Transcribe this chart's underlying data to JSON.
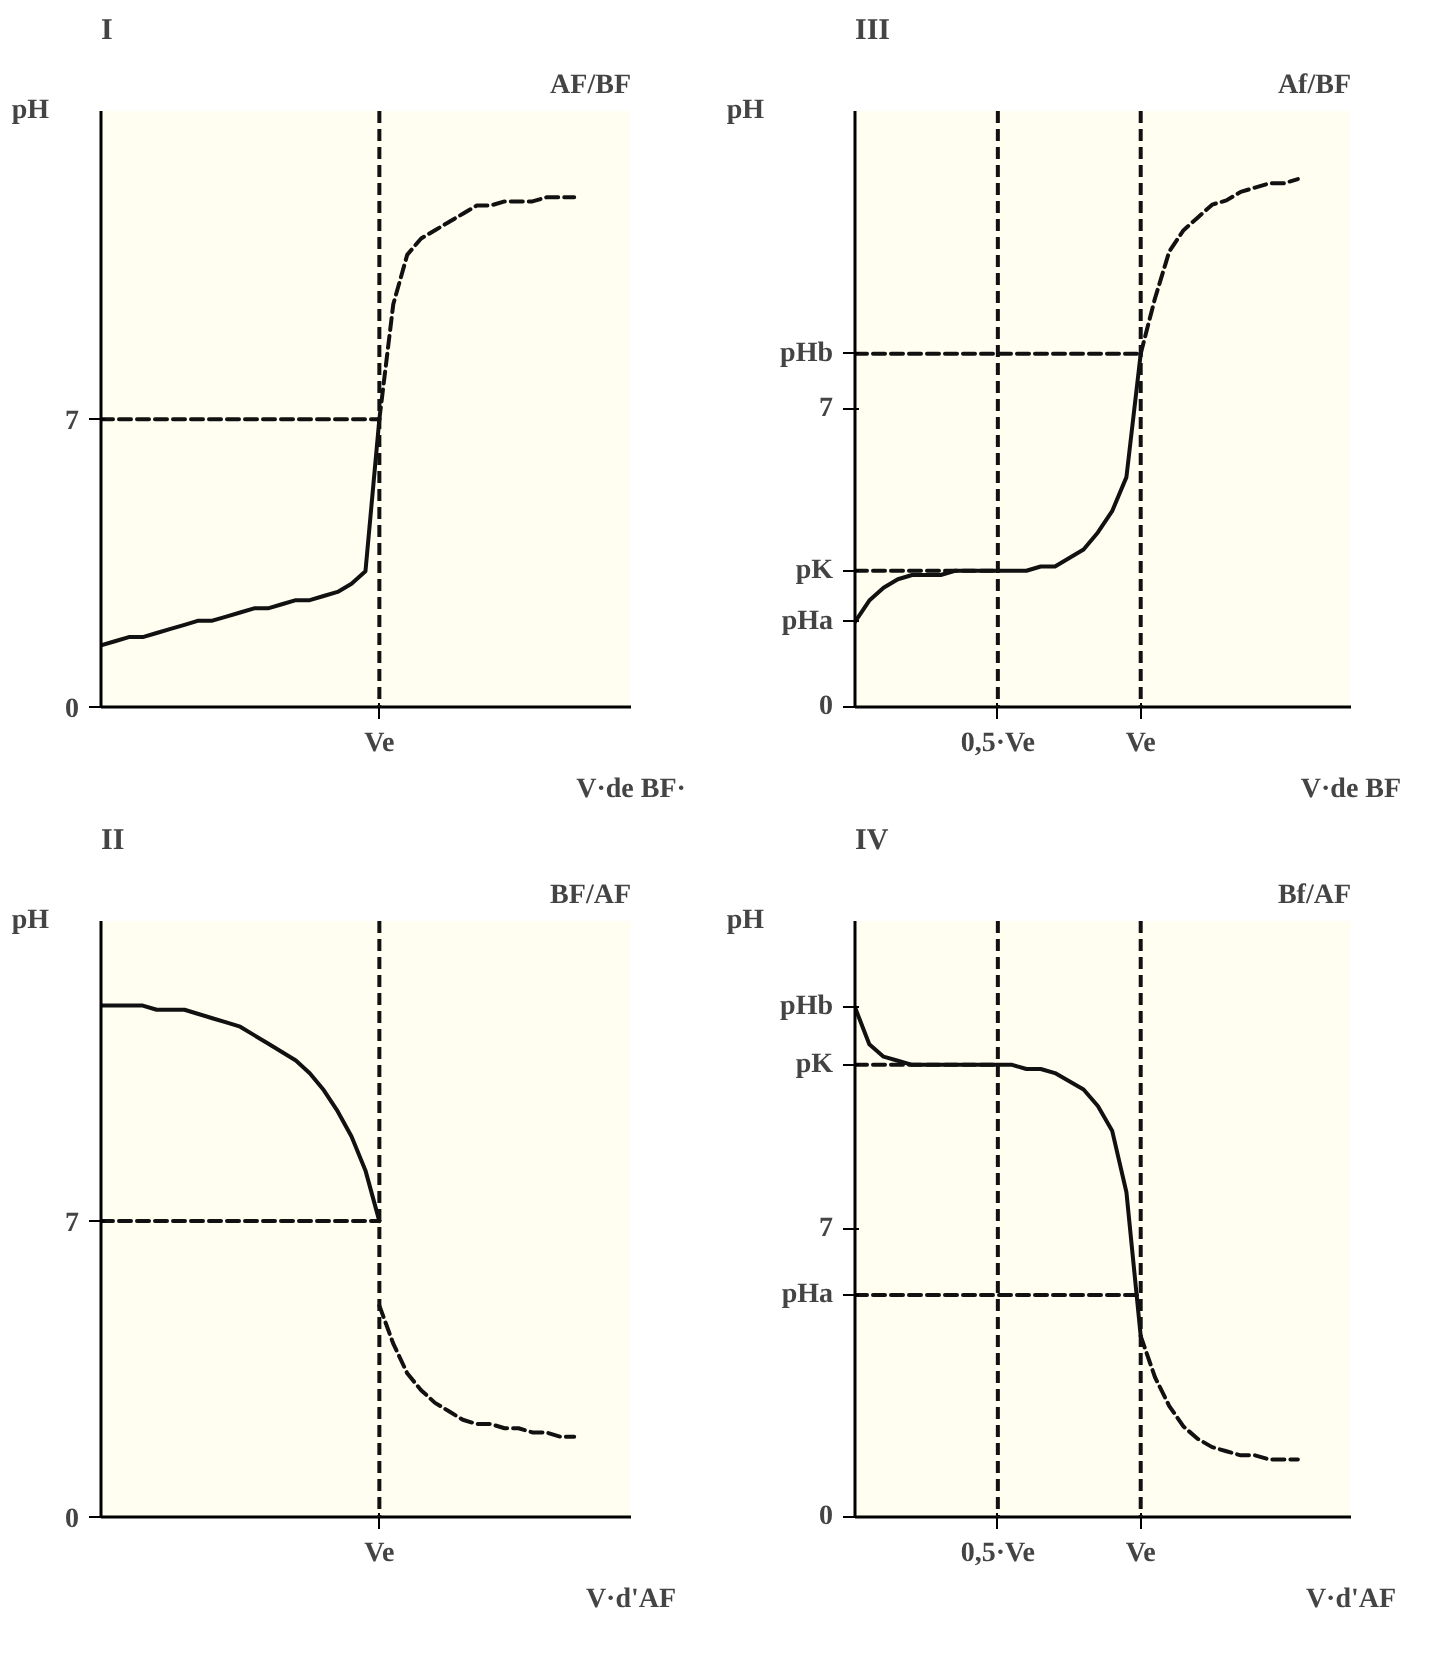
{
  "chart_data": [
    {
      "type": "line",
      "title": "I",
      "subtitle": "AF/BF",
      "xlabel": "V·de BF·",
      "ylabel": "pH",
      "ylim": [
        0,
        14.5
      ],
      "yticks": [
        0,
        7
      ],
      "grid": false,
      "categories": [
        null,
        null,
        null,
        null,
        null,
        null,
        null,
        null,
        null,
        null,
        null,
        null,
        null,
        null,
        null,
        null,
        null,
        null,
        null,
        null,
        "Ve",
        null,
        null,
        null,
        null,
        null,
        null,
        null,
        null,
        null,
        null,
        null,
        null,
        null,
        null
      ],
      "ref_lines": [
        {
          "axis": "x",
          "value": "Ve",
          "line_style": "dashed",
          "color": "#111111"
        }
      ],
      "series": [
        {
          "color": "#111111",
          "line_style": "solid",
          "values": [
            1.5,
            1.6,
            1.7,
            1.7,
            1.8,
            1.9,
            2.0,
            2.1,
            2.1,
            2.2,
            2.3,
            2.4,
            2.4,
            2.5,
            2.6,
            2.6,
            2.7,
            2.8,
            3.0,
            3.3,
            7,
            null,
            null,
            null,
            null,
            null,
            null,
            null,
            null,
            null,
            null,
            null,
            null,
            null,
            null
          ]
        },
        {
          "color": "#111111",
          "line_style": "dashed",
          "values": [
            null,
            null,
            null,
            null,
            null,
            null,
            null,
            null,
            null,
            null,
            null,
            null,
            null,
            null,
            null,
            null,
            null,
            null,
            null,
            null,
            7,
            9.8,
            11.0,
            11.4,
            11.6,
            11.8,
            12.0,
            12.2,
            12.2,
            12.3,
            12.3,
            12.3,
            12.4,
            12.4,
            12.4
          ]
        },
        {
          "color": "#111111",
          "line_style": "dashed",
          "values": [
            7,
            7,
            7,
            7,
            7,
            7,
            7,
            7,
            7,
            7,
            7,
            7,
            7,
            7,
            7,
            7,
            7,
            7,
            7,
            7,
            7,
            null,
            null,
            null,
            null,
            null,
            null,
            null,
            null,
            null,
            null,
            null,
            null,
            null,
            null
          ]
        }
      ]
    },
    {
      "type": "line",
      "title": "III",
      "subtitle": "Af/BF",
      "xlabel": "V·de BF",
      "ylabel": "pH",
      "ylim": [
        0,
        14
      ],
      "yticks": [
        0,
        {
          "value": 2.0,
          "label": "pHa"
        },
        {
          "value": 3.2,
          "label": "pK"
        },
        7,
        {
          "value": 8.3,
          "label": "pHb"
        }
      ],
      "grid": false,
      "categories": [
        null,
        null,
        null,
        null,
        null,
        null,
        null,
        null,
        null,
        null,
        "0,5·Ve",
        null,
        null,
        null,
        null,
        null,
        null,
        null,
        null,
        null,
        "Ve",
        null,
        null,
        null,
        null,
        null,
        null,
        null,
        null,
        null,
        null,
        null
      ],
      "ref_lines": [
        {
          "axis": "x",
          "value": "0,5·Ve",
          "line_style": "dashed",
          "color": "#111111"
        },
        {
          "axis": "x",
          "value": "Ve",
          "line_style": "dashed",
          "color": "#111111"
        }
      ],
      "series": [
        {
          "color": "#111111",
          "line_style": "solid",
          "values": [
            2.0,
            2.5,
            2.8,
            3.0,
            3.1,
            3.1,
            3.1,
            3.2,
            3.2,
            3.2,
            3.2,
            3.2,
            3.2,
            3.3,
            3.3,
            3.5,
            3.7,
            4.1,
            4.6,
            5.4,
            8.3,
            null,
            null,
            null,
            null,
            null,
            null,
            null,
            null,
            null,
            null,
            null
          ]
        },
        {
          "color": "#111111",
          "line_style": "dashed",
          "values": [
            null,
            null,
            null,
            null,
            null,
            null,
            null,
            null,
            null,
            null,
            null,
            null,
            null,
            null,
            null,
            null,
            null,
            null,
            null,
            null,
            8.3,
            9.6,
            10.7,
            11.2,
            11.5,
            11.8,
            11.9,
            12.1,
            12.2,
            12.3,
            12.3,
            12.4
          ]
        },
        {
          "color": "#111111",
          "line_style": "dashed",
          "values": [
            8.3,
            8.3,
            8.3,
            8.3,
            8.3,
            8.3,
            8.3,
            8.3,
            8.3,
            8.3,
            8.3,
            8.3,
            8.3,
            8.3,
            8.3,
            8.3,
            8.3,
            8.3,
            8.3,
            8.3,
            8.3,
            null,
            null,
            null,
            null,
            null,
            null,
            null,
            null,
            null,
            null,
            null
          ]
        },
        {
          "color": "#111111",
          "line_style": "dashed",
          "values": [
            3.2,
            3.2,
            3.2,
            3.2,
            3.2,
            3.2,
            3.2,
            3.2,
            3.2,
            3.2,
            3.2,
            null,
            null,
            null,
            null,
            null,
            null,
            null,
            null,
            null,
            null,
            null,
            null,
            null,
            null,
            null,
            null,
            null,
            null,
            null,
            null,
            null
          ]
        }
      ]
    },
    {
      "type": "line",
      "title": "II",
      "subtitle": "BF/AF",
      "xlabel": "V·d'AF",
      "ylabel": "pH",
      "ylim": [
        0,
        14.1
      ],
      "yticks": [
        0,
        7
      ],
      "grid": false,
      "categories": [
        null,
        null,
        null,
        null,
        null,
        null,
        null,
        null,
        null,
        null,
        null,
        null,
        null,
        null,
        null,
        null,
        null,
        null,
        null,
        null,
        "Ve",
        null,
        null,
        null,
        null,
        null,
        null,
        null,
        null,
        null,
        null,
        null,
        null,
        null,
        null
      ],
      "ref_lines": [
        {
          "axis": "x",
          "value": "Ve",
          "line_style": "dashed",
          "color": "#111111"
        }
      ],
      "series": [
        {
          "color": "#111111",
          "line_style": "solid",
          "values": [
            12.1,
            12.1,
            12.1,
            12.1,
            12.0,
            12.0,
            12.0,
            11.9,
            11.8,
            11.7,
            11.6,
            11.4,
            11.2,
            11.0,
            10.8,
            10.5,
            10.1,
            9.6,
            9.0,
            8.2,
            7.0,
            null,
            null,
            null,
            null,
            null,
            null,
            null,
            null,
            null,
            null,
            null,
            null,
            null,
            null
          ]
        },
        {
          "color": "#111111",
          "line_style": "dashed",
          "values": [
            null,
            null,
            null,
            null,
            null,
            null,
            null,
            null,
            null,
            null,
            null,
            null,
            null,
            null,
            null,
            null,
            null,
            null,
            null,
            null,
            5.0,
            4.1,
            3.4,
            3.0,
            2.7,
            2.5,
            2.3,
            2.2,
            2.2,
            2.1,
            2.1,
            2.0,
            2.0,
            1.9,
            1.9
          ]
        },
        {
          "color": "#111111",
          "line_style": "dashed",
          "values": [
            7,
            7,
            7,
            7,
            7,
            7,
            7,
            7,
            7,
            7,
            7,
            7,
            7,
            7,
            7,
            7,
            7,
            7,
            7,
            7,
            7,
            null,
            null,
            null,
            null,
            null,
            null,
            null,
            null,
            null,
            null,
            null,
            null,
            null,
            null
          ]
        }
      ]
    },
    {
      "type": "line",
      "title": "IV",
      "subtitle": "Bf/AF",
      "xlabel": "V·d'AF",
      "ylabel": "pH",
      "ylim": [
        0,
        14.5
      ],
      "yticks": [
        0,
        {
          "value": 5.4,
          "label": "pHa"
        },
        7,
        {
          "value": 11.0,
          "label": "pK"
        },
        {
          "value": 12.4,
          "label": "pHb"
        }
      ],
      "grid": false,
      "categories": [
        null,
        null,
        null,
        null,
        null,
        null,
        null,
        null,
        null,
        null,
        "0,5·Ve",
        null,
        null,
        null,
        null,
        null,
        null,
        null,
        null,
        null,
        "Ve",
        null,
        null,
        null,
        null,
        null,
        null,
        null,
        null,
        null,
        null,
        null
      ],
      "ref_lines": [
        {
          "axis": "x",
          "value": "0,5·Ve",
          "line_style": "dashed",
          "color": "#111111"
        },
        {
          "axis": "x",
          "value": "Ve",
          "line_style": "dashed",
          "color": "#111111"
        }
      ],
      "series": [
        {
          "color": "#111111",
          "line_style": "solid",
          "values": [
            12.4,
            11.5,
            11.2,
            11.1,
            11.0,
            11.0,
            11.0,
            11.0,
            11.0,
            11.0,
            11.0,
            11.0,
            10.9,
            10.9,
            10.8,
            10.6,
            10.4,
            10.0,
            9.4,
            7.9,
            4.4,
            null,
            null,
            null,
            null,
            null,
            null,
            null,
            null,
            null,
            null,
            null
          ]
        },
        {
          "color": "#111111",
          "line_style": "dashed",
          "values": [
            null,
            null,
            null,
            null,
            null,
            null,
            null,
            null,
            null,
            null,
            null,
            null,
            null,
            null,
            null,
            null,
            null,
            null,
            null,
            null,
            4.4,
            3.4,
            2.7,
            2.2,
            1.9,
            1.7,
            1.6,
            1.5,
            1.5,
            1.4,
            1.4,
            1.4
          ]
        },
        {
          "color": "#111111",
          "line_style": "dashed",
          "values": [
            5.4,
            5.4,
            5.4,
            5.4,
            5.4,
            5.4,
            5.4,
            5.4,
            5.4,
            5.4,
            5.4,
            5.4,
            5.4,
            5.4,
            5.4,
            5.4,
            5.4,
            5.4,
            5.4,
            5.4,
            5.4,
            null,
            null,
            null,
            null,
            null,
            null,
            null,
            null,
            null,
            null,
            null
          ]
        },
        {
          "color": "#111111",
          "line_style": "dashed",
          "values": [
            11.0,
            11.0,
            11.0,
            11.0,
            11.0,
            11.0,
            11.0,
            11.0,
            11.0,
            11.0,
            11.0,
            null,
            null,
            null,
            null,
            null,
            null,
            null,
            null,
            null,
            null,
            null,
            null,
            null,
            null,
            null,
            null,
            null,
            null,
            null,
            null,
            null
          ]
        }
      ]
    }
  ]
}
